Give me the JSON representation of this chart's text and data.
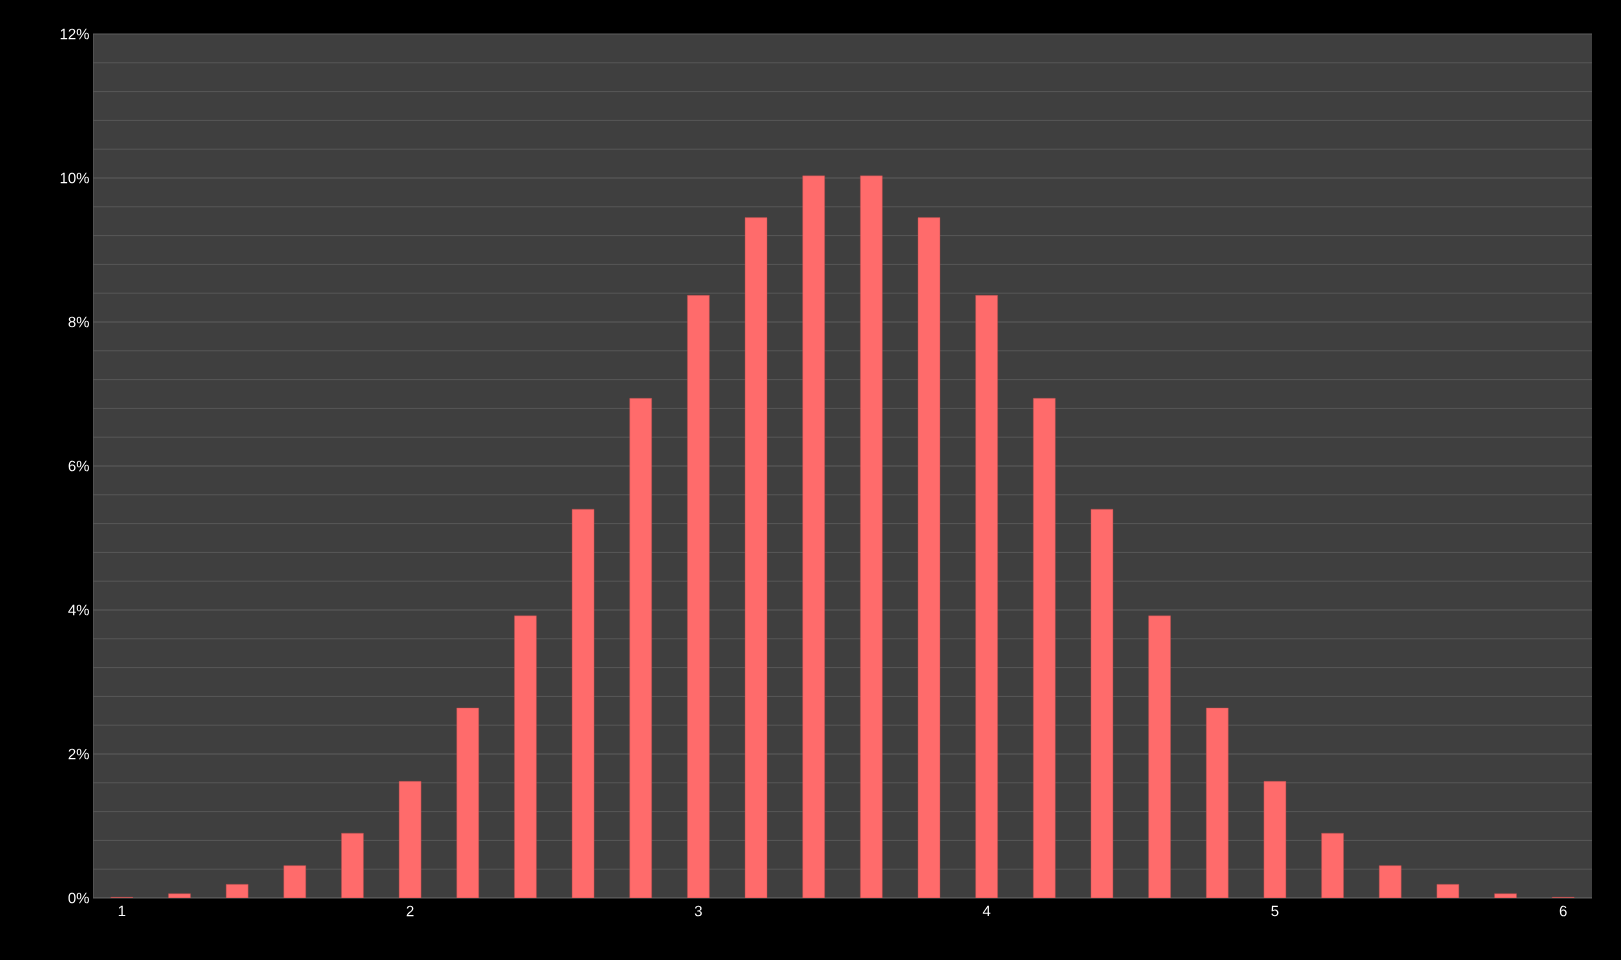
{
  "chart_data": {
    "type": "bar",
    "categories": [
      "1",
      null,
      null,
      null,
      null,
      "2",
      null,
      null,
      null,
      null,
      "3",
      null,
      null,
      null,
      null,
      "4",
      null,
      null,
      null,
      null,
      "5",
      null,
      null,
      null,
      null,
      "6"
    ],
    "values": [
      0.01,
      0.06,
      0.19,
      0.45,
      0.9,
      1.62,
      2.64,
      3.92,
      5.4,
      6.94,
      8.37,
      9.45,
      10.03,
      10.03,
      9.45,
      8.37,
      6.94,
      5.4,
      3.92,
      2.64,
      1.62,
      0.9,
      0.45,
      0.19,
      0.06,
      0.01
    ],
    "color": "#ff6b6b",
    "ylim": [
      0,
      12
    ],
    "yticks": [
      {
        "value": 0,
        "label": "0%"
      },
      {
        "value": 2,
        "label": "2%"
      },
      {
        "value": 4,
        "label": "4%"
      },
      {
        "value": 6,
        "label": "6%"
      },
      {
        "value": 8,
        "label": "8%"
      },
      {
        "value": 10,
        "label": "10%"
      },
      {
        "value": 12,
        "label": "12%"
      }
    ],
    "grid": "y"
  }
}
